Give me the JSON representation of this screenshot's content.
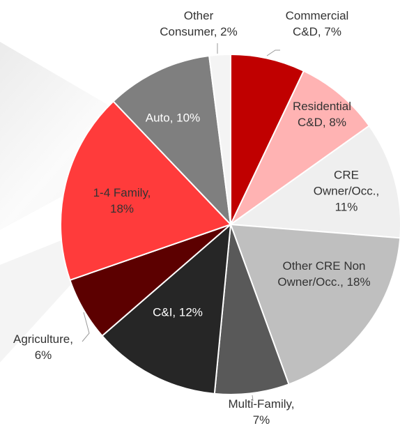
{
  "chart_data": {
    "type": "pie",
    "values": [
      7,
      8,
      11,
      18,
      7,
      12,
      6,
      18,
      10,
      2
    ],
    "value_labels": [
      [
        "Commercial",
        "C&D, 7%"
      ],
      [
        "Residential",
        "C&D, 8%"
      ],
      [
        "CRE",
        "Owner/Occ.,",
        "11%"
      ],
      [
        "Other CRE Non",
        "Owner/Occ., 18%"
      ],
      [
        "Multi-Family,",
        "7%"
      ],
      [
        "C&I, 12%"
      ],
      [
        "Agriculture,",
        "6%"
      ],
      [
        "1-4 Family,",
        "18%"
      ],
      [
        "Auto, 10%"
      ],
      [
        "Other",
        "Consumer, 2%"
      ]
    ],
    "colors": [
      "#c00000",
      "#ffb3b3",
      "#efefef",
      "#bfbfbf",
      "#595959",
      "#262626",
      "#5c0000",
      "#ff3b3b",
      "#7f7f7f",
      "#f4f4f4"
    ]
  }
}
